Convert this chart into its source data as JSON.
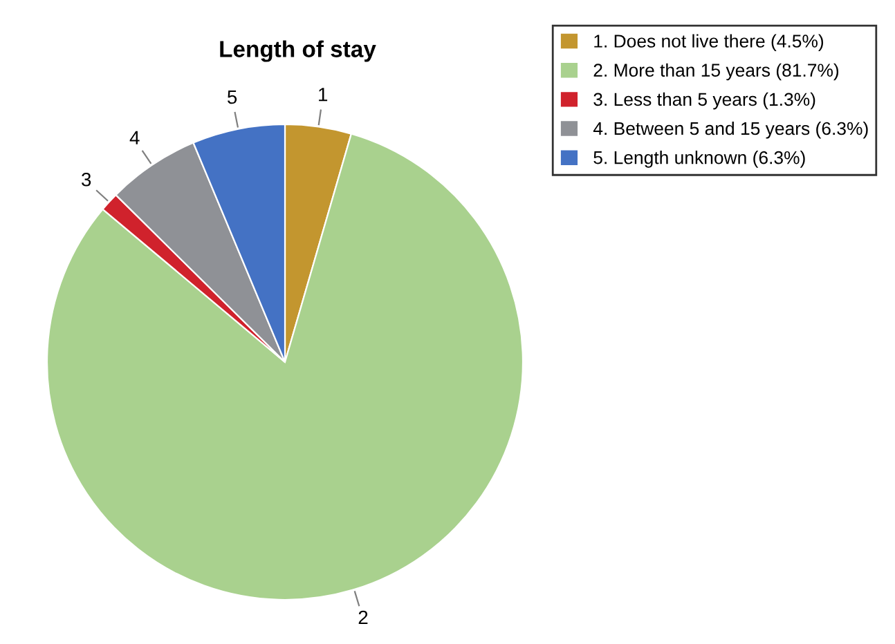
{
  "chart_data": {
    "type": "pie",
    "title": "Length of stay",
    "categories": [
      "1. Does not live there (4.5%)",
      "2. More than 15 years (81.7%)",
      "3. Less than 5 years (1.3%)",
      "4. Between 5 and 15 years (6.3%)",
      "5. Length unknown (6.3%)"
    ],
    "values": [
      4.5,
      81.7,
      1.3,
      6.3,
      6.3
    ],
    "colors": [
      "#c3962f",
      "#a9d18e",
      "#d0222c",
      "#8f9196",
      "#4472c4"
    ],
    "annotations": [
      "1",
      "2",
      "3",
      "4",
      "5"
    ],
    "legend": "top right"
  }
}
